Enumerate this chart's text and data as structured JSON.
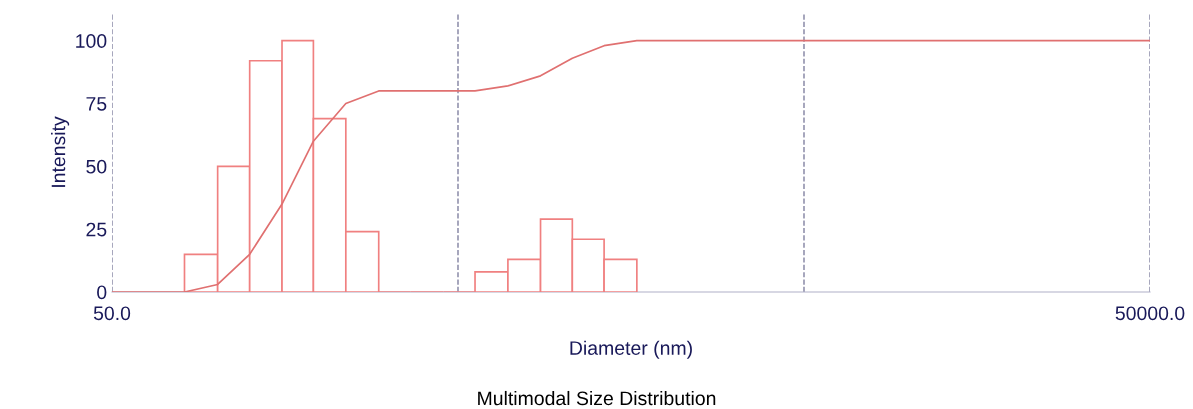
{
  "chart_data": {
    "type": "histogram",
    "title": "Multimodal Size Distribution",
    "xlabel": "Diameter (nm)",
    "ylabel": "Intensity",
    "bins": [
      81,
      101,
      125,
      155,
      191,
      237,
      295,
      365,
      454,
      560,
      697,
      866,
      1070,
      1322,
      1644
    ],
    "values": [
      15,
      50,
      92,
      100,
      69,
      24,
      0,
      0,
      0,
      8,
      13,
      29,
      21,
      13
    ],
    "color": "#f08080",
    "series": [
      {
        "type": "line",
        "color": "#e07070",
        "x": [
          50,
          81,
          101,
          125,
          155,
          191,
          237,
          295,
          560,
          697,
          866,
          1070,
          1322,
          1644,
          50000
        ],
        "values": [
          0,
          0,
          3,
          15,
          35,
          60,
          75,
          80,
          80,
          82,
          86,
          93,
          98,
          100,
          100
        ]
      }
    ],
    "log": "x",
    "xlim": [
      50,
      50000
    ],
    "ylim": [
      0,
      111
    ],
    "xticks": [
      {
        "value": 50,
        "label": "50.0"
      },
      {
        "value": 500,
        "label": null
      },
      {
        "value": 5000,
        "label": null
      },
      {
        "value": 50000,
        "label": "50000.0"
      }
    ],
    "yticks": [
      0,
      25,
      50,
      75,
      100
    ],
    "grid": "x"
  }
}
